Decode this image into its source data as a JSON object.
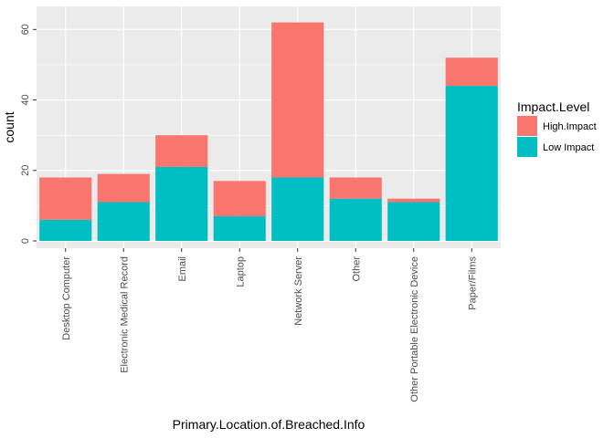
{
  "chart_data": {
    "type": "bar",
    "stacked": true,
    "xlabel": "Primary.Location.of.Breached.Info",
    "ylabel": "count",
    "ylim": [
      0,
      65
    ],
    "yticks": [
      0,
      20,
      40,
      60
    ],
    "grid": true,
    "legend_position": "right",
    "categories": [
      "Desktop Computer",
      "Electronic Medical Record",
      "Email",
      "Laptop",
      "Network Server",
      "Other",
      "Other Portable Electronic Device",
      "Paper/Films"
    ],
    "legend": {
      "title": "Impact.Level"
    },
    "series": [
      {
        "name": "Low Impact",
        "color": "#00BFC4",
        "values": [
          6,
          11,
          21,
          7,
          18,
          12,
          11,
          44
        ]
      },
      {
        "name": "High.Impact",
        "color": "#F8766D",
        "values": [
          12,
          8,
          9,
          10,
          44,
          6,
          1,
          8
        ]
      }
    ],
    "legend_order": [
      "High.Impact",
      "Low Impact"
    ],
    "panel_background": "#EBEBEB",
    "grid_color": "#FFFFFF"
  }
}
